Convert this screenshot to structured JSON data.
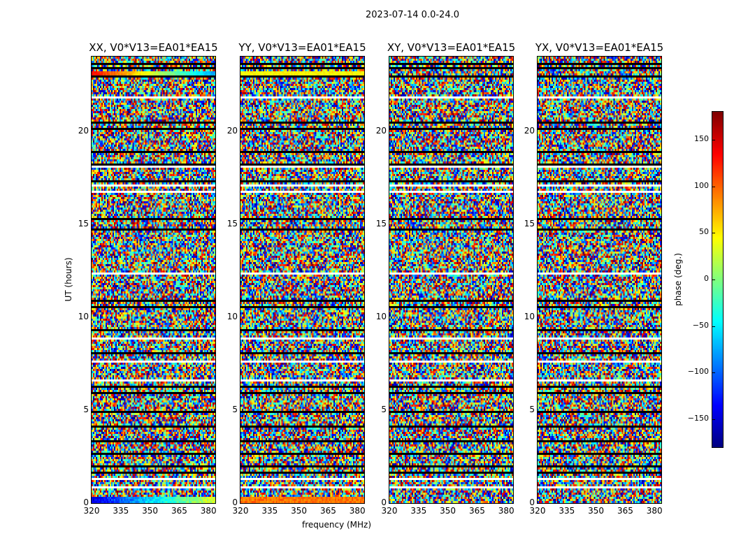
{
  "chart_data": {
    "type": "heatmap",
    "title": "2023-07-14 0.0-24.0",
    "xlabel": "frequency (MHz)",
    "ylabel": "UT (hours)",
    "xlim": [
      320,
      383.5
    ],
    "ylim": [
      0,
      24
    ],
    "xticks": [
      "320",
      "335",
      "350",
      "365",
      "380"
    ],
    "xtick_values": [
      320,
      335,
      350,
      365,
      380
    ],
    "yticks": [
      "0",
      "5",
      "10",
      "15",
      "20"
    ],
    "ytick_values": [
      0,
      5,
      10,
      15,
      20
    ],
    "panels": [
      {
        "title": "XX, V0*V13=EA01*EA15"
      },
      {
        "title": "YY, V0*V13=EA01*EA15"
      },
      {
        "title": "XY, V0*V13=EA01*EA15"
      },
      {
        "title": "YX, V0*V13=EA01*EA15"
      }
    ],
    "colorbar": {
      "label": "phase (deg.)",
      "colormap": "jet",
      "range": [
        -180,
        180
      ],
      "ticks": [
        "150",
        "100",
        "50",
        "0",
        "−50",
        "−100",
        "−150"
      ],
      "tick_values": [
        150,
        100,
        50,
        0,
        -50,
        -100,
        -150
      ]
    },
    "flagged_white_hours": [
      0.9,
      1.3,
      6.7,
      7.7,
      8.9,
      12.4,
      16.8,
      17.1,
      18.1,
      21.9
    ],
    "flagged_black_hours": [
      1.7,
      2.0,
      2.7,
      3.4,
      4.2,
      5.0,
      6.0,
      6.3,
      8.1,
      9.4,
      10.6,
      10.9,
      14.8,
      15.3,
      17.4,
      18.3,
      18.9,
      20.2,
      20.5,
      23.0,
      23.4,
      23.7
    ]
  }
}
